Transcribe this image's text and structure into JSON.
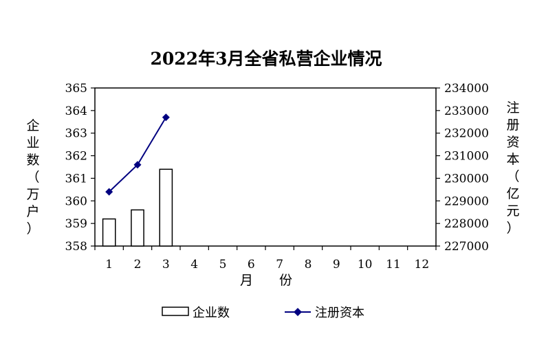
{
  "chart_data": {
    "type": "bar+line",
    "title": "2022年3月全省私营企业情况",
    "xlabel": "月　　份",
    "ylabel_left": "企业数（万户）",
    "ylabel_right": "注册资本（亿元）",
    "categories": [
      "1",
      "2",
      "3",
      "4",
      "5",
      "6",
      "7",
      "8",
      "9",
      "10",
      "11",
      "12"
    ],
    "ylim_left": [
      358,
      365
    ],
    "yticks_left": [
      358,
      359,
      360,
      361,
      362,
      363,
      364,
      365
    ],
    "ylim_right": [
      227000,
      234000
    ],
    "yticks_right": [
      227000,
      228000,
      229000,
      230000,
      231000,
      232000,
      233000,
      234000
    ],
    "grid": false,
    "legend_position": "bottom",
    "series": [
      {
        "name": "企业数",
        "type": "bar",
        "axis": "left",
        "color": "#ffffff",
        "stroke": "#000000",
        "values": [
          359.2,
          359.6,
          361.4,
          null,
          null,
          null,
          null,
          null,
          null,
          null,
          null,
          null
        ]
      },
      {
        "name": "注册资本",
        "type": "line",
        "axis": "right",
        "color": "#000080",
        "marker": "diamond",
        "values": [
          229400,
          230600,
          232700,
          null,
          null,
          null,
          null,
          null,
          null,
          null,
          null,
          null
        ]
      }
    ]
  }
}
